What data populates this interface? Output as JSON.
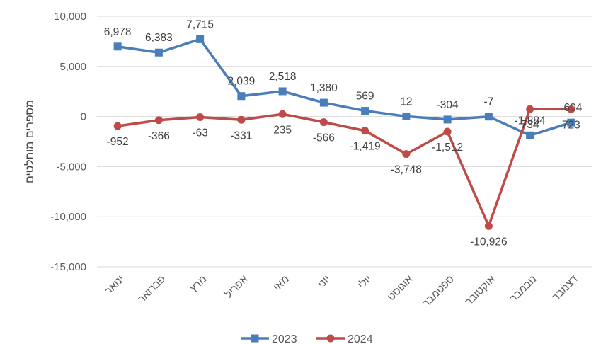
{
  "chart_data": {
    "type": "line",
    "title": "",
    "xlabel": "",
    "ylabel": "מספרים מוחלטים",
    "ylim": [
      -15000,
      10000
    ],
    "yticks": [
      10000,
      5000,
      0,
      -5000,
      -10000,
      -15000
    ],
    "ytick_labels": [
      "10,000",
      "5,000",
      "0",
      "-5,000",
      "-10,000",
      "-15,000"
    ],
    "grid": "horizontal",
    "legend": "bottom",
    "categories": [
      "ינואר",
      "פברואר",
      "מרץ",
      "אפריל",
      "מאי",
      "יוני",
      "יולי",
      "אוגוסט",
      "ספטמבר",
      "אוקטובר",
      "נובמבר",
      "דצמבר"
    ],
    "series": [
      {
        "name": "2023",
        "color": "#4a7ebb",
        "marker": "square",
        "values": [
          6978,
          6383,
          7715,
          2039,
          2518,
          1380,
          569,
          12,
          -304,
          -7,
          -1884,
          -604
        ],
        "labels": [
          "6,978",
          "6,383",
          "7,715",
          "2,039",
          "2,518",
          "1,380",
          "569",
          "12",
          "-304",
          "-7",
          "-1,884",
          "-604"
        ]
      },
      {
        "name": "2024",
        "color": "#be4b48",
        "marker": "circle",
        "values": [
          -952,
          -366,
          -63,
          -331,
          235,
          -566,
          -1419,
          -3748,
          -1512,
          -10926,
          734,
          723
        ],
        "labels": [
          "-952",
          "-366",
          "-63",
          "-331",
          "235",
          "-566",
          "-1,419",
          "-3,748",
          "-1,512",
          "-10,926",
          "734",
          "723"
        ]
      }
    ]
  }
}
